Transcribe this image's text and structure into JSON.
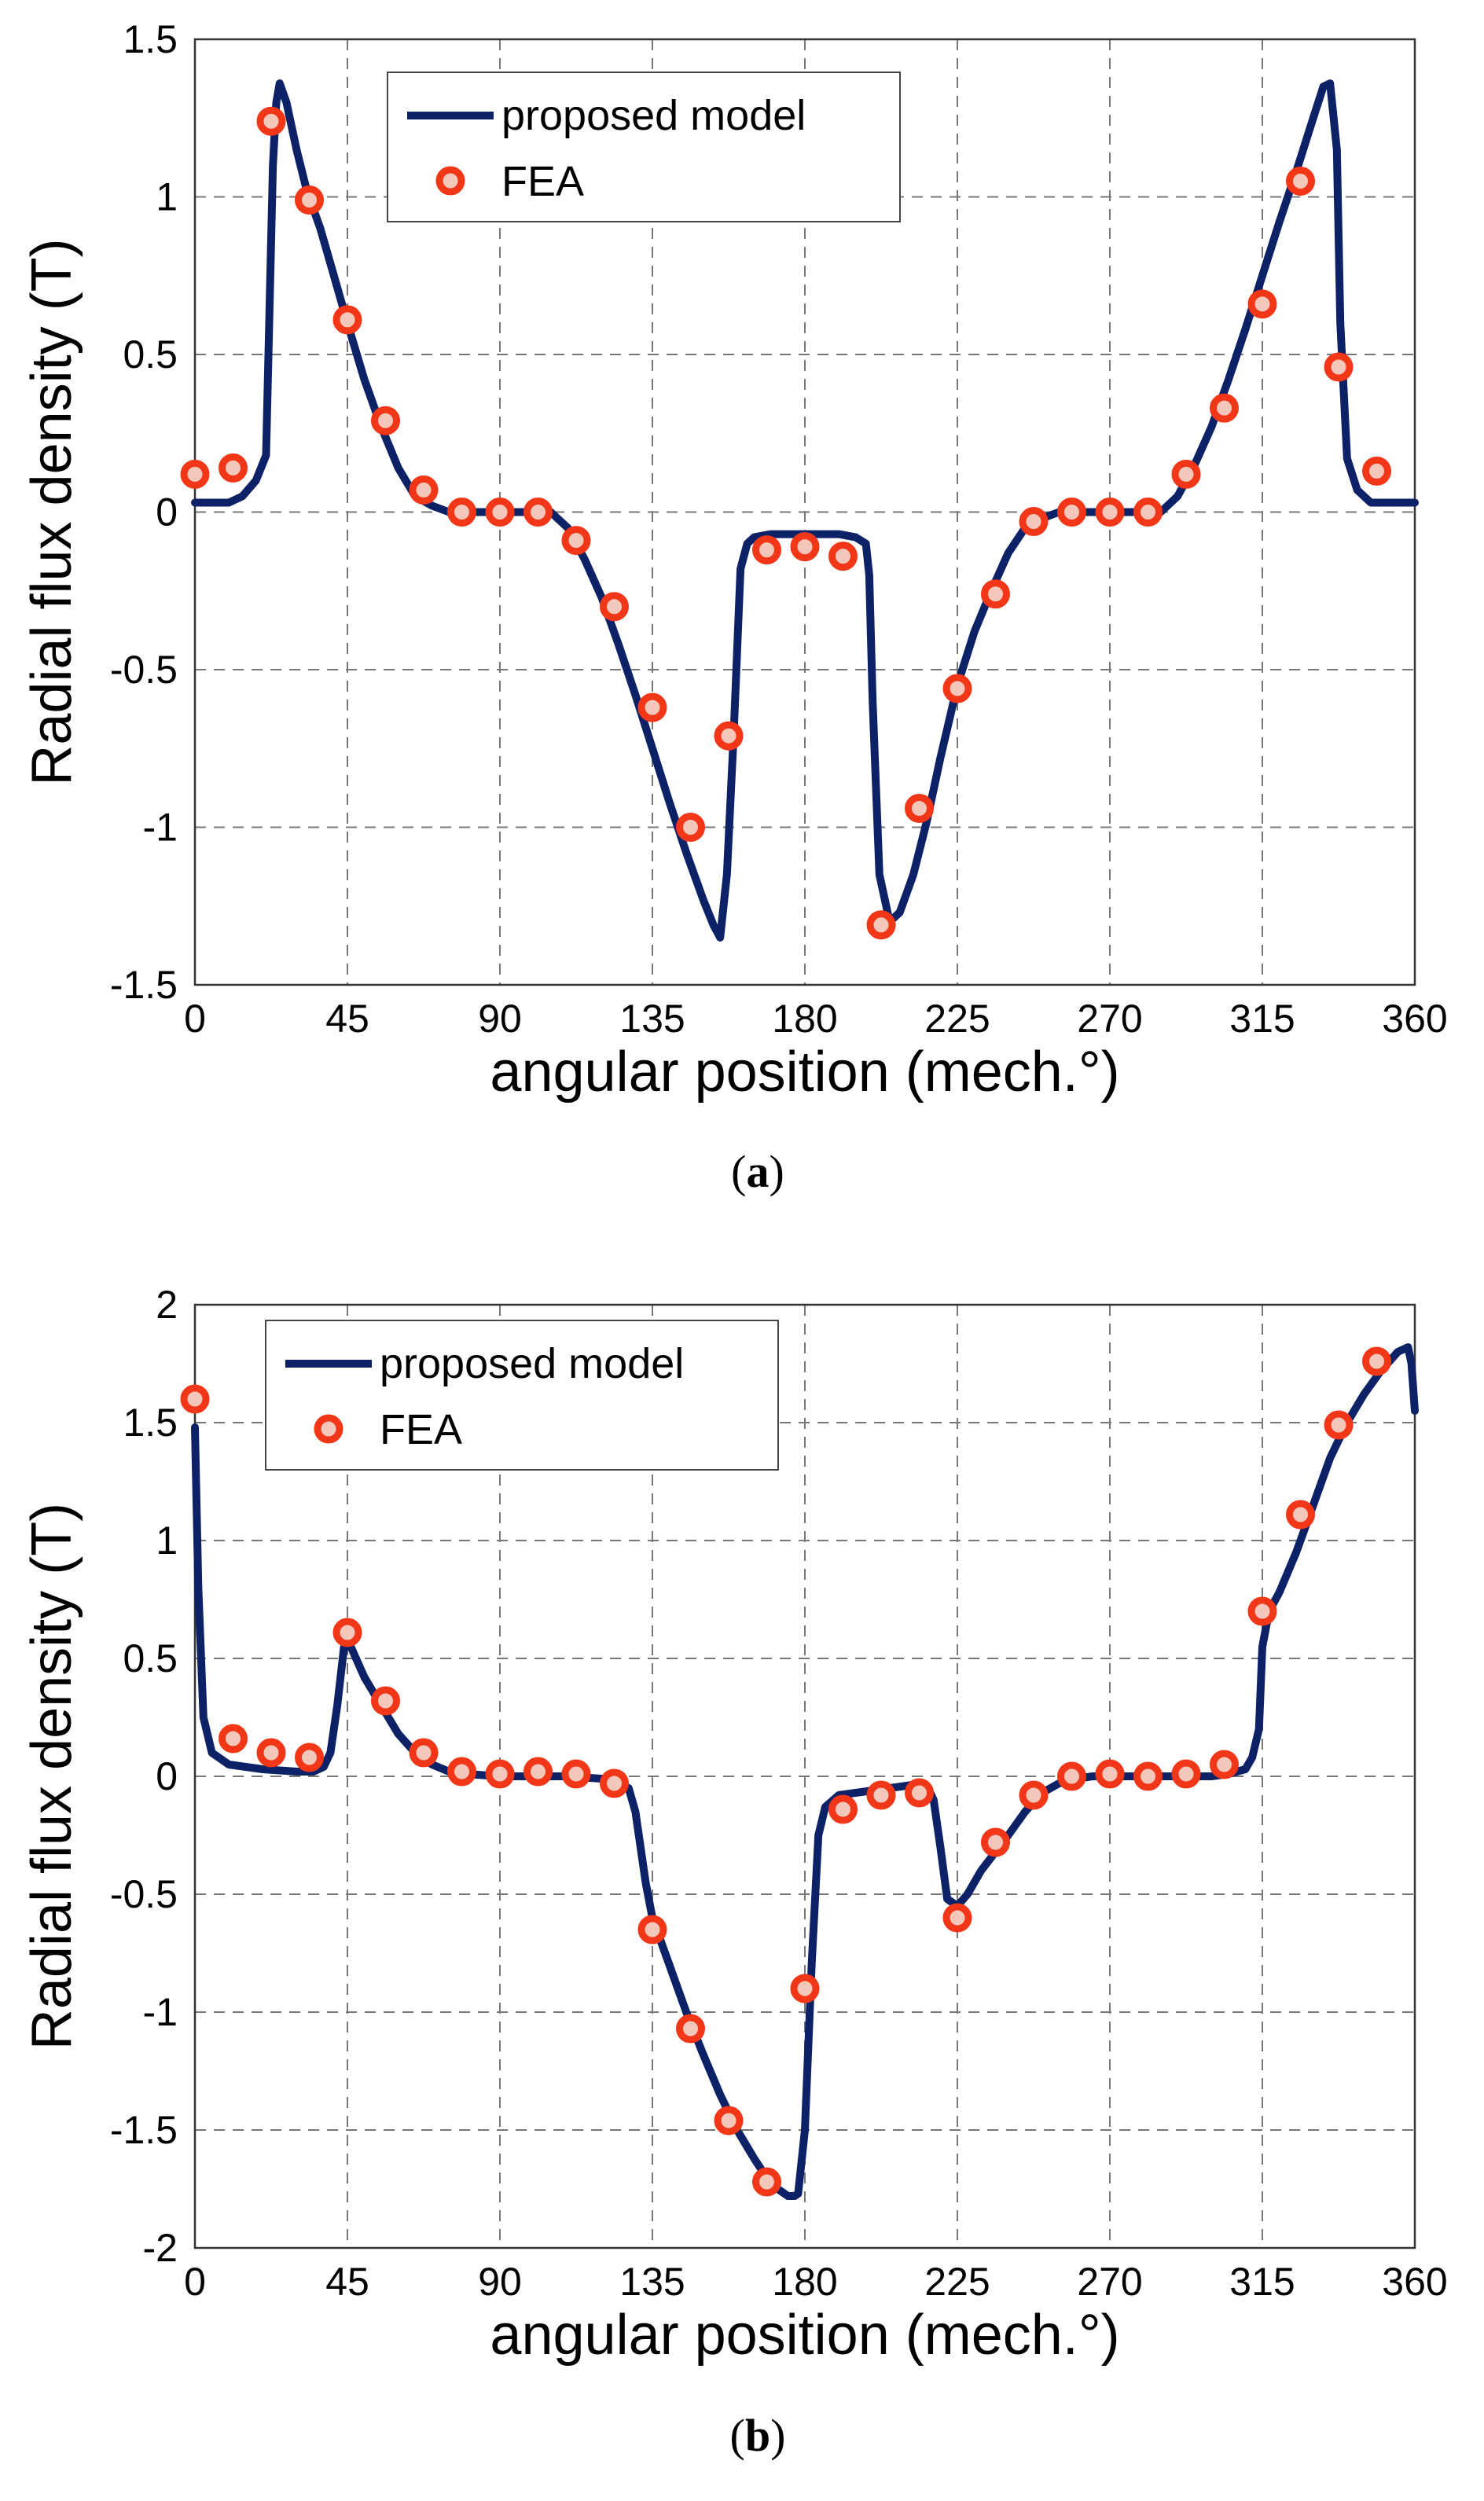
{
  "chart_data": [
    {
      "type": "line",
      "panel": "a",
      "caption_open": "(",
      "caption_letter": "a",
      "caption_close": ")",
      "xlabel": "angular position (mech.°)",
      "ylabel": "Radial flux density (T)",
      "xlim": [
        0,
        360
      ],
      "ylim": [
        -1.5,
        1.5
      ],
      "xticks": [
        0,
        45,
        90,
        135,
        180,
        225,
        270,
        315,
        360
      ],
      "yticks": [
        -1.5,
        -1,
        -0.5,
        0,
        0.5,
        1,
        1.5
      ],
      "xtick_labels": [
        "0",
        "45",
        "90",
        "135",
        "180",
        "225",
        "270",
        "315",
        "360"
      ],
      "ytick_labels": [
        "-1.5",
        "-1",
        "-0.5",
        "0",
        "0.5",
        "1",
        "1.5"
      ],
      "grid": true,
      "legend": {
        "position": "top-left",
        "line_label": "proposed model",
        "marker_label": "FEA"
      },
      "series": [
        {
          "name": "proposed model",
          "style": "line",
          "color": "#0d2266",
          "x": [
            0,
            5,
            10,
            14,
            18,
            21,
            23,
            24,
            25,
            27,
            30,
            33,
            37,
            41,
            45,
            50,
            55,
            60,
            65,
            70,
            75,
            80,
            90,
            100,
            105,
            110,
            115,
            120,
            125,
            130,
            135,
            140,
            145,
            150,
            153,
            155,
            157,
            159,
            161,
            163,
            165,
            170,
            180,
            190,
            195,
            198,
            199,
            200,
            202,
            205,
            208,
            212,
            216,
            220,
            225,
            230,
            235,
            240,
            245,
            250,
            255,
            260,
            270,
            280,
            285,
            290,
            295,
            300,
            305,
            310,
            315,
            320,
            325,
            330,
            333,
            335,
            337,
            338,
            340,
            343,
            347,
            352,
            360
          ],
          "y": [
            0.03,
            0.03,
            0.03,
            0.05,
            0.1,
            0.18,
            1.1,
            1.3,
            1.36,
            1.3,
            1.15,
            1.02,
            0.9,
            0.75,
            0.6,
            0.42,
            0.27,
            0.14,
            0.05,
            0.02,
            0.0,
            0.0,
            0.0,
            0.0,
            0.0,
            -0.05,
            -0.15,
            -0.27,
            -0.42,
            -0.58,
            -0.75,
            -0.92,
            -1.08,
            -1.23,
            -1.31,
            -1.35,
            -1.15,
            -0.7,
            -0.18,
            -0.1,
            -0.08,
            -0.07,
            -0.07,
            -0.07,
            -0.08,
            -0.1,
            -0.2,
            -0.6,
            -1.15,
            -1.3,
            -1.27,
            -1.15,
            -0.98,
            -0.78,
            -0.55,
            -0.38,
            -0.25,
            -0.13,
            -0.05,
            -0.02,
            0.0,
            0.0,
            0.0,
            0.0,
            0.0,
            0.05,
            0.15,
            0.27,
            0.42,
            0.58,
            0.75,
            0.92,
            1.08,
            1.25,
            1.35,
            1.36,
            1.15,
            0.6,
            0.17,
            0.07,
            0.03,
            0.03,
            0.03
          ]
        },
        {
          "name": "FEA",
          "style": "marker",
          "color": "#f23618",
          "x": [
            0,
            11.25,
            22.5,
            33.75,
            45,
            56.25,
            67.5,
            78.75,
            90,
            101.25,
            112.5,
            123.75,
            135,
            146.25,
            157.5,
            168.75,
            180,
            191.25,
            202.5,
            213.75,
            225,
            236.25,
            247.5,
            258.75,
            270,
            281.25,
            292.5,
            303.75,
            315,
            326.25,
            337.5,
            348.75
          ],
          "y": [
            0.12,
            0.14,
            1.24,
            0.99,
            0.61,
            0.29,
            0.07,
            0.0,
            0.0,
            0.0,
            -0.09,
            -0.3,
            -0.62,
            -1.0,
            -0.71,
            -0.12,
            -0.11,
            -0.14,
            -1.31,
            -0.94,
            -0.56,
            -0.26,
            -0.03,
            0.0,
            0.0,
            0.0,
            0.12,
            0.33,
            0.66,
            1.05,
            0.46,
            0.13
          ]
        }
      ]
    },
    {
      "type": "line",
      "panel": "b",
      "caption_open": "(",
      "caption_letter": "b",
      "caption_close": ")",
      "xlabel": "angular position (mech.°)",
      "ylabel": "Radial flux density (T)",
      "xlim": [
        0,
        360
      ],
      "ylim": [
        -2,
        2
      ],
      "xticks": [
        0,
        45,
        90,
        135,
        180,
        225,
        270,
        315,
        360
      ],
      "yticks": [
        -2,
        -1.5,
        -1,
        -0.5,
        0,
        0.5,
        1,
        1.5,
        2
      ],
      "xtick_labels": [
        "0",
        "45",
        "90",
        "135",
        "180",
        "225",
        "270",
        "315",
        "360"
      ],
      "ytick_labels": [
        "-2",
        "-1.5",
        "-1",
        "-0.5",
        "0",
        "0.5",
        "1",
        "1.5",
        "2"
      ],
      "grid": true,
      "legend": {
        "position": "top-left",
        "line_label": "proposed model",
        "marker_label": "FEA"
      },
      "series": [
        {
          "name": "proposed model",
          "style": "line",
          "color": "#0d2266",
          "x": [
            0,
            1,
            2.5,
            5,
            10,
            20,
            30,
            35,
            38,
            40,
            42,
            44,
            46,
            50,
            55,
            60,
            65,
            70,
            75,
            80,
            90,
            100,
            110,
            120,
            125,
            128,
            130,
            133,
            135,
            140,
            145,
            150,
            155,
            160,
            165,
            170,
            175,
            177,
            178,
            180,
            182,
            184,
            186,
            190,
            200,
            210,
            215,
            216,
            218,
            220,
            222,
            225,
            228,
            232,
            240,
            245,
            250,
            255,
            260,
            265,
            270,
            280,
            290,
            300,
            305,
            310,
            312,
            314,
            315,
            317,
            320,
            325,
            330,
            335,
            340,
            345,
            350,
            355,
            358,
            359,
            360
          ],
          "y": [
            1.48,
            0.8,
            0.25,
            0.1,
            0.05,
            0.03,
            0.02,
            0.02,
            0.04,
            0.1,
            0.3,
            0.55,
            0.55,
            0.42,
            0.3,
            0.18,
            0.1,
            0.05,
            0.02,
            0.01,
            0.0,
            0.0,
            0.0,
            -0.01,
            -0.03,
            -0.05,
            -0.15,
            -0.45,
            -0.6,
            -0.8,
            -1.0,
            -1.18,
            -1.35,
            -1.5,
            -1.62,
            -1.73,
            -1.78,
            -1.78,
            -1.77,
            -1.5,
            -0.8,
            -0.25,
            -0.13,
            -0.08,
            -0.06,
            -0.04,
            -0.03,
            -0.04,
            -0.1,
            -0.3,
            -0.52,
            -0.55,
            -0.5,
            -0.4,
            -0.25,
            -0.15,
            -0.07,
            -0.03,
            -0.01,
            0.0,
            0.0,
            0.0,
            0.0,
            0.0,
            0.01,
            0.03,
            0.08,
            0.2,
            0.55,
            0.7,
            0.78,
            0.95,
            1.15,
            1.35,
            1.5,
            1.62,
            1.72,
            1.8,
            1.82,
            1.75,
            1.55
          ]
        },
        {
          "name": "FEA",
          "style": "marker",
          "color": "#f23618",
          "x": [
            0,
            11.25,
            22.5,
            33.75,
            45,
            56.25,
            67.5,
            78.75,
            90,
            101.25,
            112.5,
            123.75,
            135,
            146.25,
            157.5,
            168.75,
            180,
            191.25,
            202.5,
            213.75,
            225,
            236.25,
            247.5,
            258.75,
            270,
            281.25,
            292.5,
            303.75,
            315,
            326.25,
            337.5,
            348.75
          ],
          "y": [
            1.6,
            0.16,
            0.1,
            0.08,
            0.61,
            0.32,
            0.1,
            0.02,
            0.01,
            0.02,
            0.01,
            -0.03,
            -0.65,
            -1.07,
            -1.46,
            -1.72,
            -0.9,
            -0.14,
            -0.08,
            -0.07,
            -0.6,
            -0.28,
            -0.08,
            0.0,
            0.01,
            0.0,
            0.01,
            0.05,
            0.7,
            1.11,
            1.49,
            1.76
          ]
        }
      ]
    }
  ]
}
